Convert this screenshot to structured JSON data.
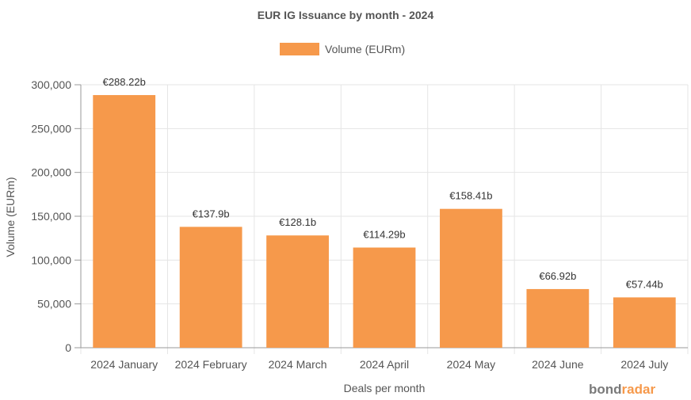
{
  "chart_data": {
    "type": "bar",
    "title": "EUR IG Issuance by month - 2024",
    "xlabel": "Deals per month",
    "ylabel": "Volume (EURm)",
    "categories": [
      "2024 January",
      "2024 February",
      "2024 March",
      "2024 April",
      "2024 May",
      "2024 June",
      "2024 July"
    ],
    "series": [
      {
        "name": "Volume (EURm)",
        "values": [
          288220,
          137900,
          128100,
          114290,
          158410,
          66920,
          57440
        ],
        "labels": [
          "€288.22b",
          "€137.9b",
          "€128.1b",
          "€114.29b",
          "€158.41b",
          "€66.92b",
          "€57.44b"
        ],
        "color": "#f6994b"
      }
    ],
    "ylim": [
      0,
      300000
    ],
    "yticks": [
      "0",
      "50,000",
      "100,000",
      "150,000",
      "200,000",
      "250,000",
      "300,000"
    ],
    "grid": true,
    "legend_position": "top-center"
  },
  "branding": {
    "logo_part1": "bond",
    "logo_part2": "radar"
  }
}
